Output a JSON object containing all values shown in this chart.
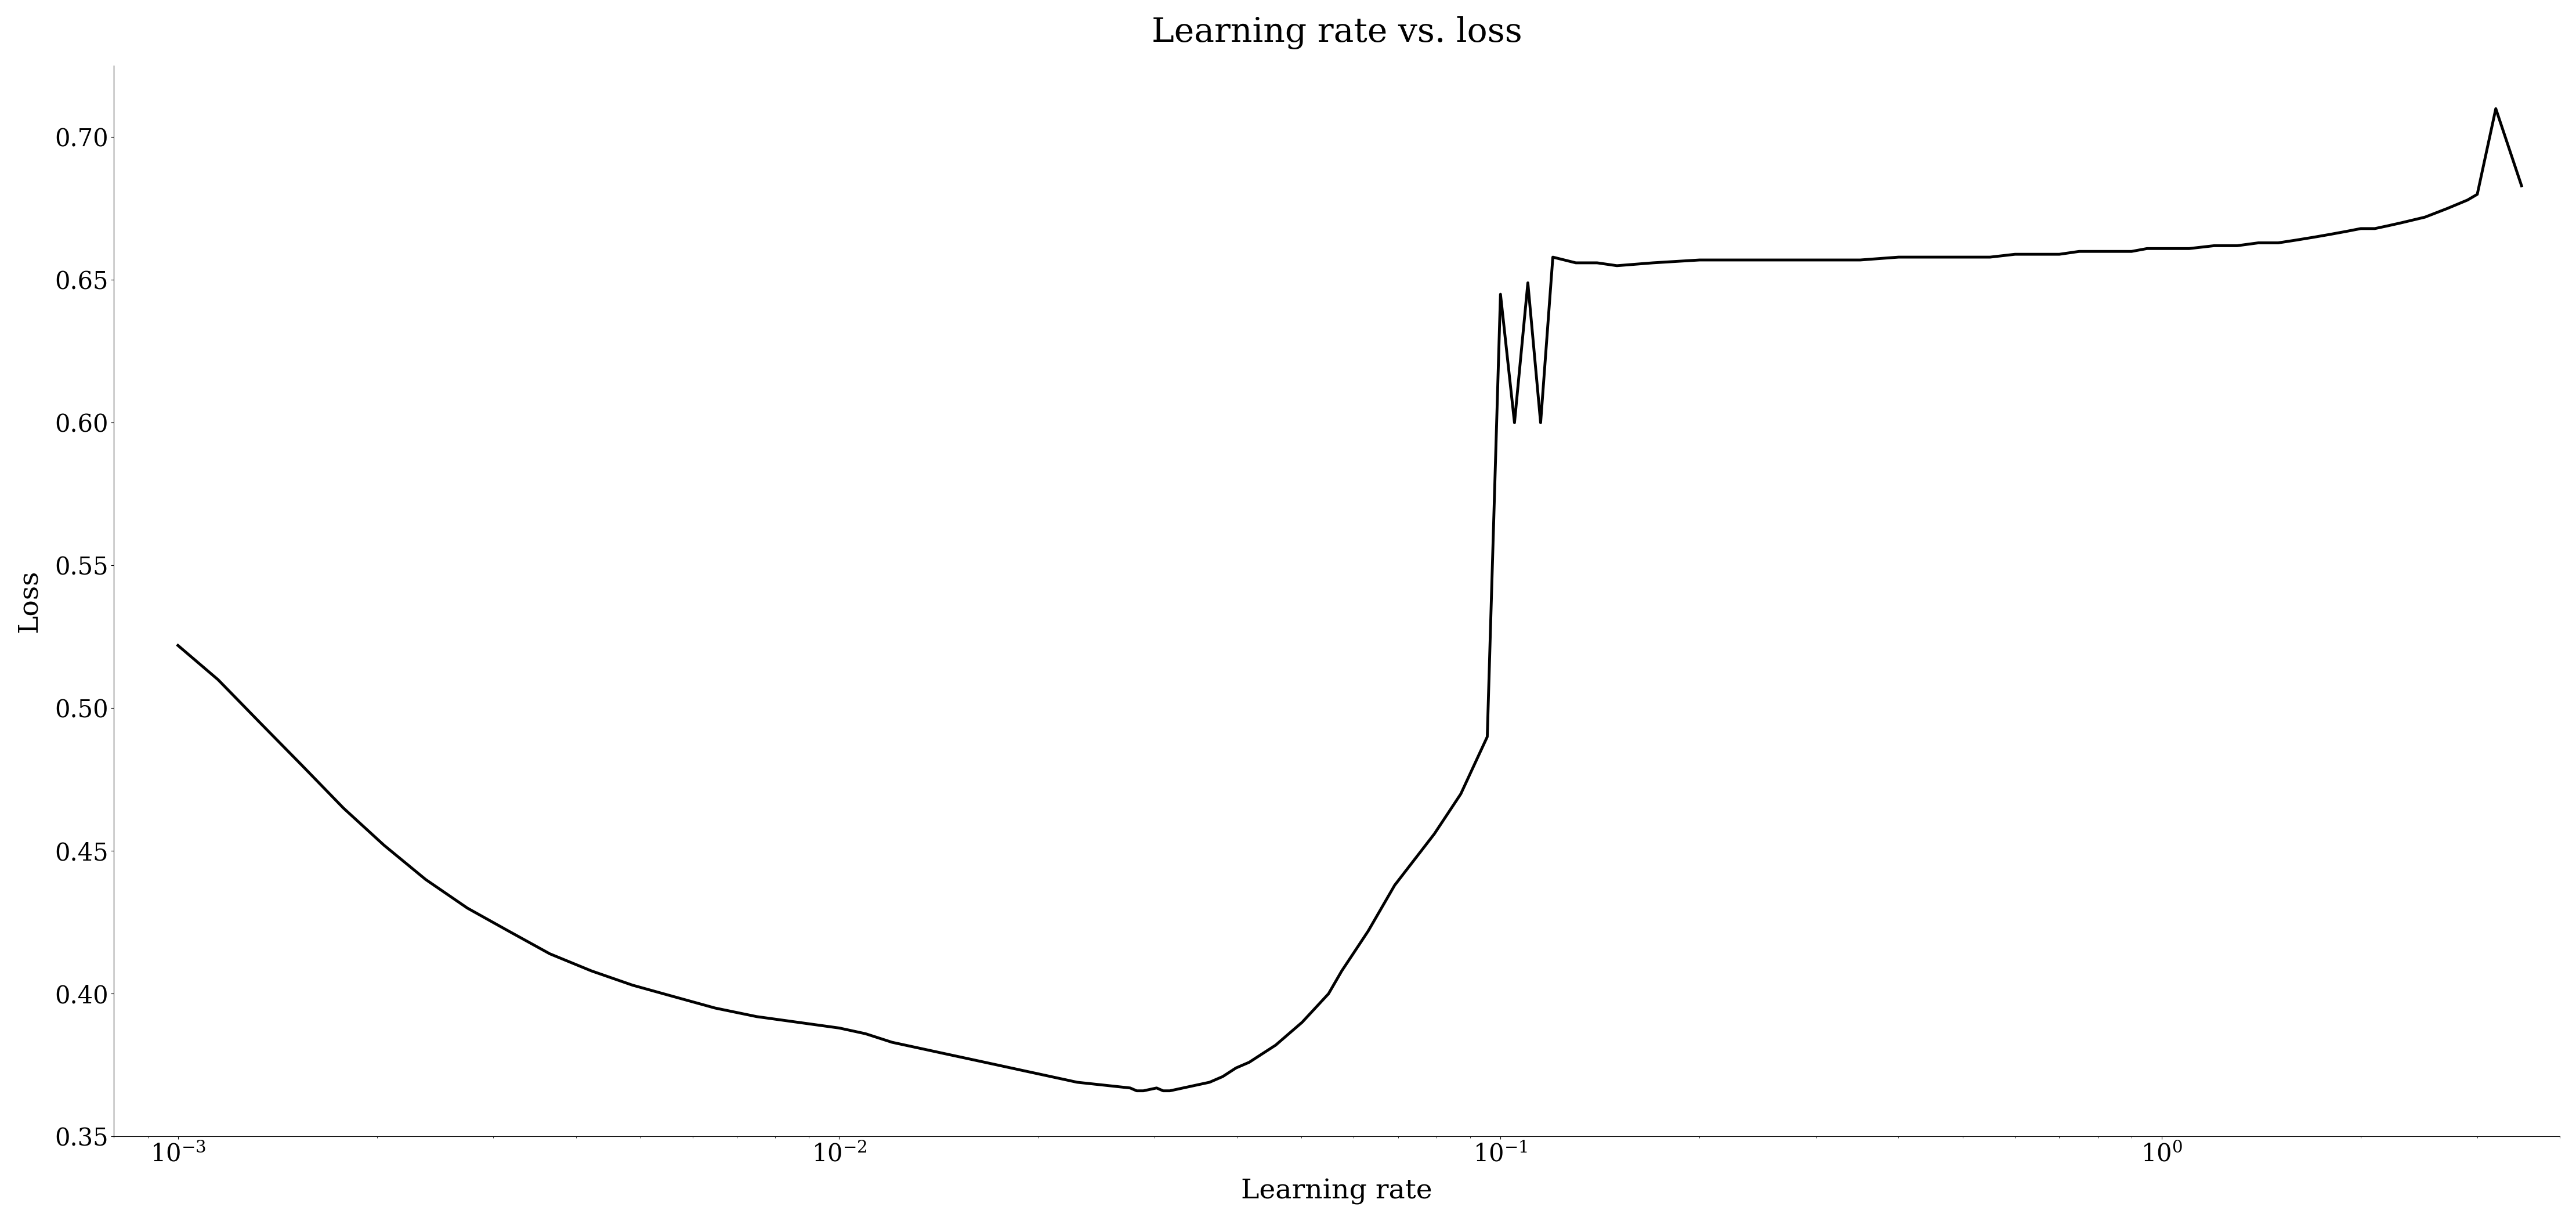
{
  "title": "Learning rate vs. loss",
  "xlabel": "Learning rate",
  "ylabel": "Loss",
  "xlim": [
    0.0008,
    4.0
  ],
  "ylim": [
    0.35,
    0.725
  ],
  "background_color": "#ffffff",
  "line_color": "#000000",
  "line_width": 3.5,
  "title_fontsize": 42,
  "label_fontsize": 34,
  "tick_fontsize": 30,
  "yticks": [
    0.35,
    0.4,
    0.45,
    0.5,
    0.55,
    0.6,
    0.65,
    0.7
  ],
  "x_values": [
    0.001,
    0.00115,
    0.00133,
    0.00154,
    0.00178,
    0.00205,
    0.00237,
    0.00274,
    0.00316,
    0.00365,
    0.00422,
    0.00487,
    0.00562,
    0.00649,
    0.0075,
    0.00866,
    0.01,
    0.01096,
    0.01202,
    0.01318,
    0.01445,
    0.01585,
    0.01738,
    0.01905,
    0.02089,
    0.0229,
    0.02512,
    0.02754,
    0.02818,
    0.02884,
    0.0302,
    0.0309,
    0.03162,
    0.03311,
    0.03467,
    0.03631,
    0.03802,
    0.03981,
    0.04169,
    0.04365,
    0.04571,
    0.04786,
    0.05012,
    0.05248,
    0.05495,
    0.05754,
    0.06026,
    0.0631,
    0.06607,
    0.06918,
    0.07244,
    0.07586,
    0.07943,
    0.08318,
    0.0871,
    0.0912,
    0.0955,
    0.1,
    0.105,
    0.11,
    0.115,
    0.12,
    0.13,
    0.14,
    0.15,
    0.17,
    0.2,
    0.25,
    0.3,
    0.35,
    0.4,
    0.45,
    0.5,
    0.55,
    0.6,
    0.65,
    0.7,
    0.75,
    0.8,
    0.85,
    0.9,
    0.95,
    1.0,
    1.05,
    1.1,
    1.2,
    1.3,
    1.4,
    1.5,
    1.6,
    1.7,
    1.8,
    1.9,
    2.0,
    2.1,
    2.2,
    2.3,
    2.5,
    2.7,
    2.9,
    3.0,
    3.2,
    3.5
  ],
  "y_values": [
    0.522,
    0.51,
    0.495,
    0.48,
    0.465,
    0.452,
    0.44,
    0.43,
    0.422,
    0.414,
    0.408,
    0.403,
    0.399,
    0.395,
    0.392,
    0.39,
    0.388,
    0.386,
    0.383,
    0.381,
    0.379,
    0.377,
    0.375,
    0.373,
    0.371,
    0.369,
    0.368,
    0.367,
    0.366,
    0.366,
    0.367,
    0.366,
    0.366,
    0.367,
    0.368,
    0.369,
    0.371,
    0.374,
    0.376,
    0.379,
    0.382,
    0.386,
    0.39,
    0.395,
    0.4,
    0.408,
    0.415,
    0.422,
    0.43,
    0.438,
    0.444,
    0.45,
    0.456,
    0.463,
    0.47,
    0.48,
    0.49,
    0.645,
    0.6,
    0.649,
    0.6,
    0.658,
    0.656,
    0.656,
    0.655,
    0.656,
    0.657,
    0.657,
    0.657,
    0.657,
    0.658,
    0.658,
    0.658,
    0.658,
    0.659,
    0.659,
    0.659,
    0.66,
    0.66,
    0.66,
    0.66,
    0.661,
    0.661,
    0.661,
    0.661,
    0.662,
    0.662,
    0.663,
    0.663,
    0.664,
    0.665,
    0.666,
    0.667,
    0.668,
    0.668,
    0.669,
    0.67,
    0.672,
    0.675,
    0.678,
    0.68,
    0.71,
    0.683
  ]
}
